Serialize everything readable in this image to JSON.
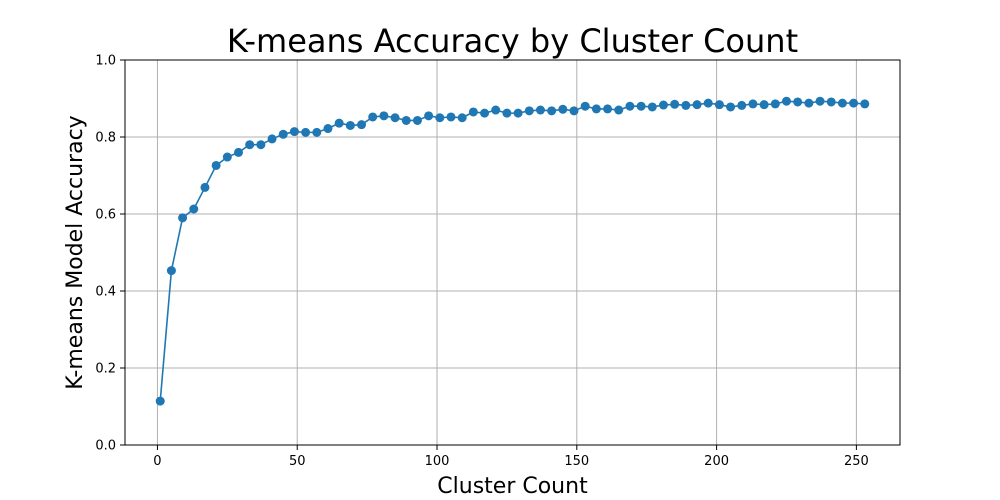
{
  "chart_data": {
    "type": "line",
    "title": "K-means Accuracy by Cluster Count",
    "xlabel": "Cluster Count",
    "ylabel": "K-means Model Accuracy",
    "xlim": [
      -11.6,
      265.6
    ],
    "ylim": [
      0.0,
      1.0
    ],
    "xticks": [
      0,
      50,
      100,
      150,
      200,
      250
    ],
    "yticks": [
      0.0,
      0.2,
      0.4,
      0.6,
      0.8,
      1.0
    ],
    "xtick_labels": [
      "0",
      "50",
      "100",
      "150",
      "200",
      "250"
    ],
    "ytick_labels": [
      "0.0",
      "0.2",
      "0.4",
      "0.6",
      "0.8",
      "1.0"
    ],
    "grid": true,
    "color": "#1f77b4",
    "series": [
      {
        "x": [
          1,
          5,
          9,
          13,
          17,
          21,
          25,
          29,
          33,
          37,
          41,
          45,
          49,
          53,
          57,
          61,
          65,
          69,
          73,
          77,
          81,
          85,
          89,
          93,
          97,
          101,
          105,
          109,
          113,
          117,
          121,
          125,
          129,
          133,
          137,
          141,
          145,
          149,
          153,
          157,
          161,
          165,
          169,
          173,
          177,
          181,
          185,
          189,
          193,
          197,
          201,
          205,
          209,
          213,
          217,
          221,
          225,
          229,
          233,
          237,
          241,
          245,
          249,
          253
        ],
        "y": [
          0.114,
          0.453,
          0.59,
          0.613,
          0.669,
          0.726,
          0.748,
          0.76,
          0.78,
          0.78,
          0.795,
          0.807,
          0.814,
          0.812,
          0.812,
          0.822,
          0.836,
          0.83,
          0.832,
          0.852,
          0.855,
          0.85,
          0.843,
          0.843,
          0.855,
          0.85,
          0.852,
          0.85,
          0.865,
          0.862,
          0.87,
          0.862,
          0.862,
          0.868,
          0.87,
          0.868,
          0.872,
          0.868,
          0.88,
          0.873,
          0.873,
          0.87,
          0.88,
          0.88,
          0.878,
          0.883,
          0.885,
          0.882,
          0.884,
          0.888,
          0.884,
          0.878,
          0.882,
          0.886,
          0.884,
          0.886,
          0.893,
          0.891,
          0.888,
          0.893,
          0.891,
          0.888,
          0.888,
          0.886
        ]
      }
    ]
  }
}
